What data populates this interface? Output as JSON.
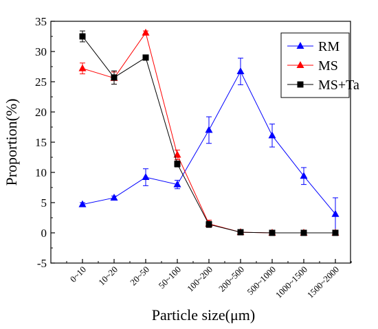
{
  "chart_data": {
    "type": "line",
    "xlabel": "Particle size(μm)",
    "ylabel": "Proportion(%)",
    "categories": [
      "0~10",
      "10~20",
      "20~50",
      "50~100",
      "100~200",
      "200~500",
      "500~1000",
      "1000~1500",
      "1500~2000"
    ],
    "ylim": [
      -5,
      35
    ],
    "yticks": [
      -5,
      0,
      5,
      10,
      15,
      20,
      25,
      30,
      35
    ],
    "grid": false,
    "legend_position": "top-right",
    "series": [
      {
        "name": "RM",
        "color": "#0000ff",
        "marker": "triangle",
        "values": [
          4.7,
          5.8,
          9.2,
          8.0,
          17.0,
          26.7,
          16.1,
          9.4,
          3.1
        ],
        "errors": [
          0.3,
          0.3,
          1.4,
          0.7,
          2.2,
          2.2,
          1.9,
          1.4,
          2.7
        ]
      },
      {
        "name": "MS",
        "color": "#ff0000",
        "marker": "triangle",
        "values": [
          27.2,
          25.6,
          33.1,
          12.9,
          1.5,
          0.1,
          0.0,
          0.0,
          0.0
        ],
        "errors": [
          0.9,
          1.0,
          0.3,
          0.8,
          0.6,
          0.1,
          0.1,
          0.1,
          0.1
        ]
      },
      {
        "name": "MS+Ta",
        "color": "#000000",
        "marker": "square",
        "values": [
          32.5,
          25.7,
          29.0,
          11.4,
          1.4,
          0.1,
          0.0,
          0.0,
          0.0
        ],
        "errors": [
          0.9,
          1.1,
          0.2,
          0.5,
          0.5,
          0.1,
          0.1,
          0.1,
          0.1
        ]
      }
    ]
  }
}
